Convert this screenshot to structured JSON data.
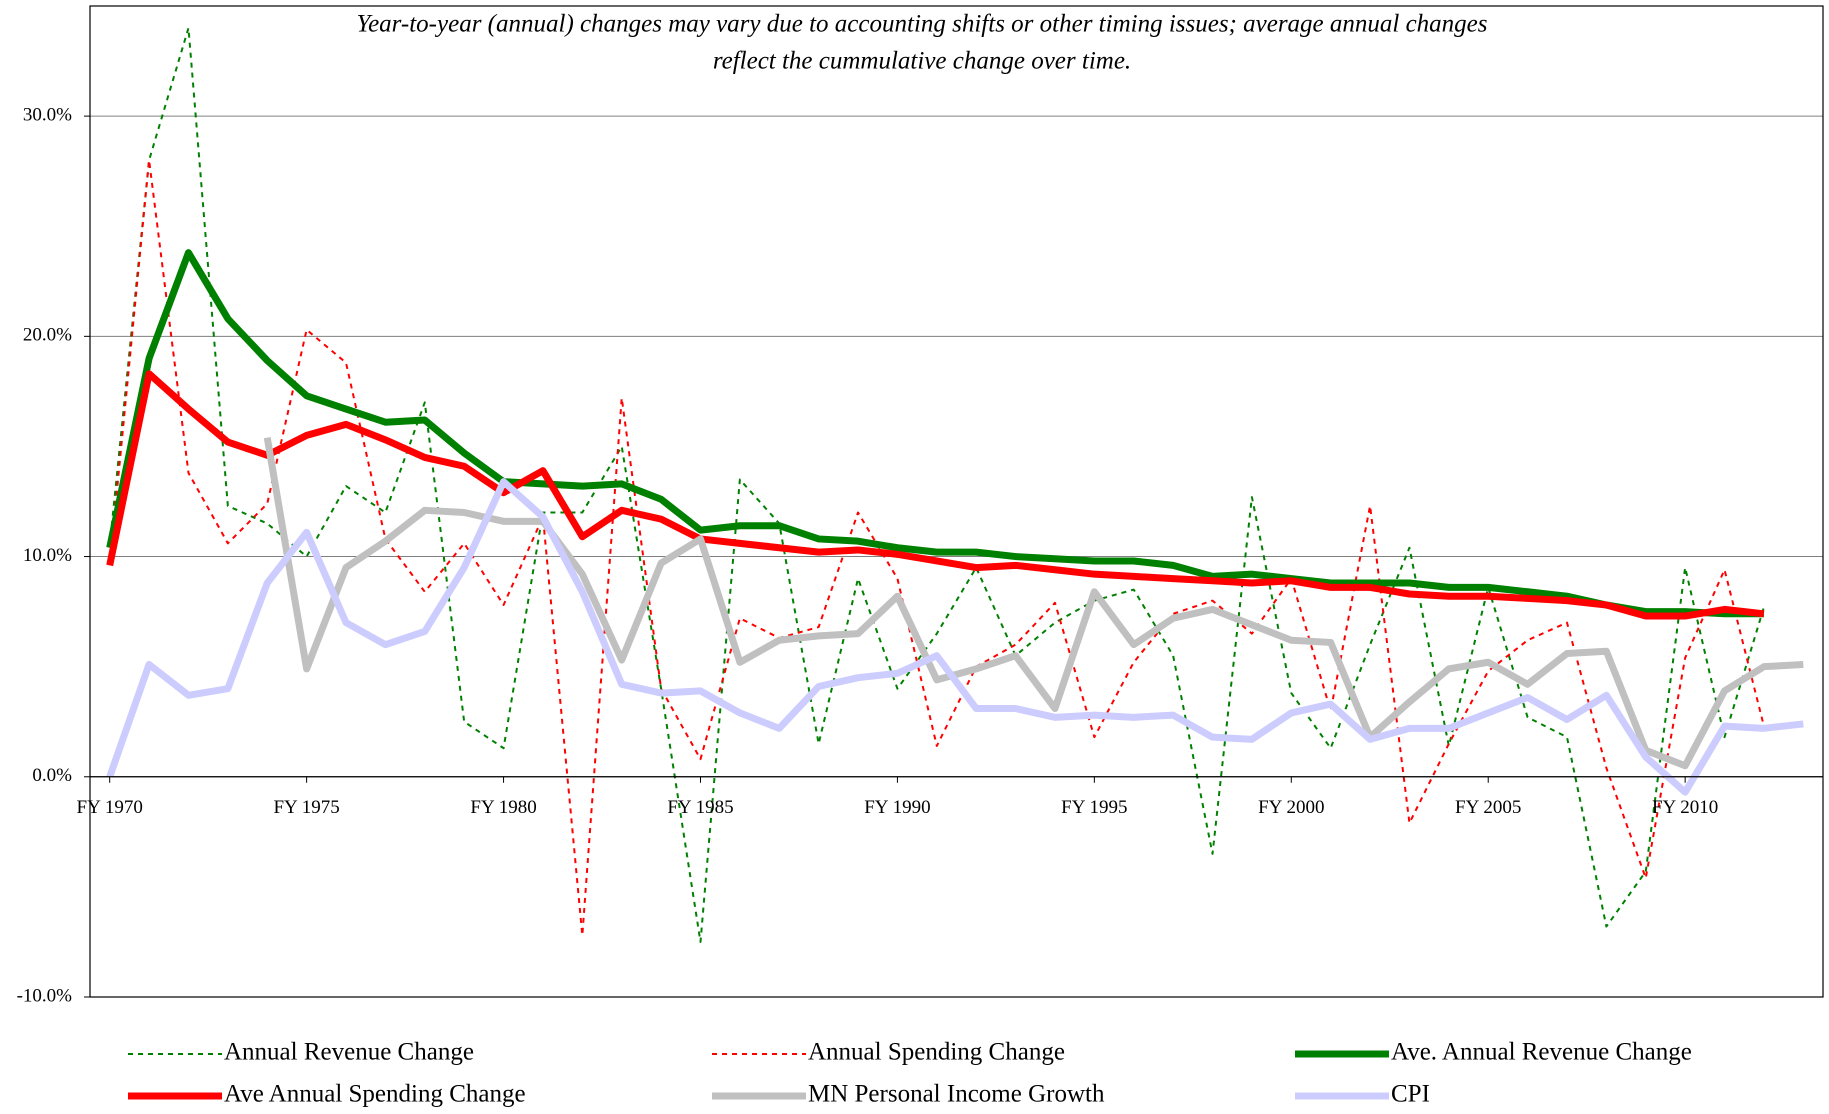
{
  "chart_data": {
    "type": "line",
    "annotation": [
      "Year-to-year (annual) changes may vary due to accounting shifts or other timing issues; average annual changes",
      "reflect the cummulative change over time."
    ],
    "x": [
      1970,
      1971,
      1972,
      1973,
      1974,
      1975,
      1976,
      1977,
      1978,
      1979,
      1980,
      1981,
      1982,
      1983,
      1984,
      1985,
      1986,
      1987,
      1988,
      1989,
      1990,
      1991,
      1992,
      1993,
      1994,
      1995,
      1996,
      1997,
      1998,
      1999,
      2000,
      2001,
      2002,
      2003,
      2004,
      2005,
      2006,
      2007,
      2008,
      2009,
      2010,
      2011,
      2012,
      2013
    ],
    "xlim": [
      1969.5,
      2013.5
    ],
    "xticks": [
      {
        "value": 1970,
        "label": "FY 1970"
      },
      {
        "value": 1975,
        "label": "FY 1975"
      },
      {
        "value": 1980,
        "label": "FY 1980"
      },
      {
        "value": 1985,
        "label": "FY 1985"
      },
      {
        "value": 1990,
        "label": "FY 1990"
      },
      {
        "value": 1995,
        "label": "FY 1995"
      },
      {
        "value": 2000,
        "label": "FY 2000"
      },
      {
        "value": 2005,
        "label": "FY 2005"
      },
      {
        "value": 2010,
        "label": "FY 2010"
      }
    ],
    "ylim": [
      -10,
      35
    ],
    "yticks": [
      {
        "value": -10,
        "label": "-10.0%"
      },
      {
        "value": 0,
        "label": "0.0%"
      },
      {
        "value": 10,
        "label": "10.0%"
      },
      {
        "value": 20,
        "label": "20.0%"
      },
      {
        "value": 30,
        "label": "30.0%"
      }
    ],
    "grid": true,
    "legend": "bottom",
    "series": [
      {
        "name": "Annual Revenue Change",
        "color": "#008000",
        "line_style": "dotted",
        "line_width": 2,
        "values": [
          10.5,
          28,
          34,
          12.3,
          11.5,
          10,
          13.2,
          12,
          17,
          2.5,
          1.3,
          12,
          12,
          15,
          4,
          -7.5,
          13.5,
          11.5,
          1.5,
          9,
          4,
          6.5,
          9.5,
          5.5,
          7,
          8,
          8.5,
          5.5,
          -3.5,
          12.7,
          3.8,
          1.3,
          6,
          10.4,
          1.4,
          8.6,
          2.7,
          1.8,
          -6.8,
          -4.3,
          9.5,
          1.8,
          7.7,
          null
        ]
      },
      {
        "name": "Annual Spending Change",
        "color": "#ff0000",
        "line_style": "dotted",
        "line_width": 2,
        "values": [
          9.6,
          28,
          13.8,
          10.6,
          12.4,
          20.3,
          18.8,
          10.8,
          8.4,
          10.6,
          7.8,
          11.8,
          -7.2,
          17.2,
          4,
          0.8,
          7.2,
          6.3,
          6.8,
          12,
          9,
          1.4,
          5,
          6,
          7.9,
          1.8,
          5.2,
          7.4,
          8,
          6.5,
          9,
          3,
          12.3,
          -2.1,
          1.5,
          4.8,
          6.2,
          7,
          0.4,
          -4.6,
          5.4,
          9.4,
          2.3,
          null
        ]
      },
      {
        "name": "Ave. Annual Revenue Change",
        "color": "#008000",
        "line_style": "solid",
        "line_width": 7,
        "values": [
          10.4,
          19,
          23.8,
          20.8,
          18.9,
          17.3,
          16.7,
          16.1,
          16.2,
          14.7,
          13.4,
          13.3,
          13.2,
          13.3,
          12.6,
          11.2,
          11.4,
          11.4,
          10.8,
          10.7,
          10.4,
          10.2,
          10.2,
          10,
          9.9,
          9.8,
          9.8,
          9.6,
          9.1,
          9.2,
          9,
          8.8,
          8.8,
          8.8,
          8.6,
          8.6,
          8.4,
          8.2,
          7.8,
          7.5,
          7.5,
          7.4,
          7.4,
          null
        ]
      },
      {
        "name": "Ave Annual Spending Change",
        "color": "#ff0000",
        "line_style": "solid",
        "line_width": 7,
        "values": [
          9.6,
          18.3,
          16.7,
          15.2,
          14.6,
          15.5,
          16,
          15.3,
          14.5,
          14.1,
          12.9,
          13.9,
          10.9,
          12.1,
          11.7,
          10.8,
          10.6,
          10.4,
          10.2,
          10.3,
          10.1,
          9.8,
          9.5,
          9.6,
          9.4,
          9.2,
          9.1,
          9,
          8.9,
          8.8,
          8.9,
          8.6,
          8.6,
          8.3,
          8.2,
          8.2,
          8.1,
          8,
          7.8,
          7.3,
          7.3,
          7.6,
          7.4,
          null
        ]
      },
      {
        "name": "MN Personal Income Growth",
        "color": "#c0c0c0",
        "line_style": "solid",
        "line_width": 7,
        "values": [
          null,
          null,
          null,
          null,
          15.4,
          4.9,
          9.5,
          10.7,
          12.1,
          12,
          11.6,
          11.6,
          9.2,
          5.3,
          9.7,
          10.8,
          5.2,
          6.2,
          6.4,
          6.5,
          8.2,
          4.4,
          4.9,
          5.5,
          3.1,
          8.4,
          6,
          7.2,
          7.6,
          6.9,
          6.2,
          6.1,
          1.8,
          3.4,
          4.9,
          5.2,
          4.2,
          5.6,
          5.7,
          1.2,
          0.5,
          3.9,
          5,
          5.1
        ]
      },
      {
        "name": "CPI",
        "color": "#ccccff",
        "line_style": "solid",
        "line_width": 7,
        "values": [
          0,
          5.1,
          3.7,
          4,
          8.8,
          11.1,
          7,
          6,
          6.6,
          9.5,
          13.4,
          11.8,
          8.4,
          4.2,
          3.8,
          3.9,
          2.9,
          2.2,
          4.1,
          4.5,
          4.7,
          5.5,
          3.1,
          3.1,
          2.7,
          2.8,
          2.7,
          2.8,
          1.8,
          1.7,
          2.9,
          3.3,
          1.7,
          2.2,
          2.2,
          2.9,
          3.6,
          2.6,
          3.7,
          0.9,
          -0.7,
          2.3,
          2.2,
          2.4
        ]
      }
    ]
  }
}
